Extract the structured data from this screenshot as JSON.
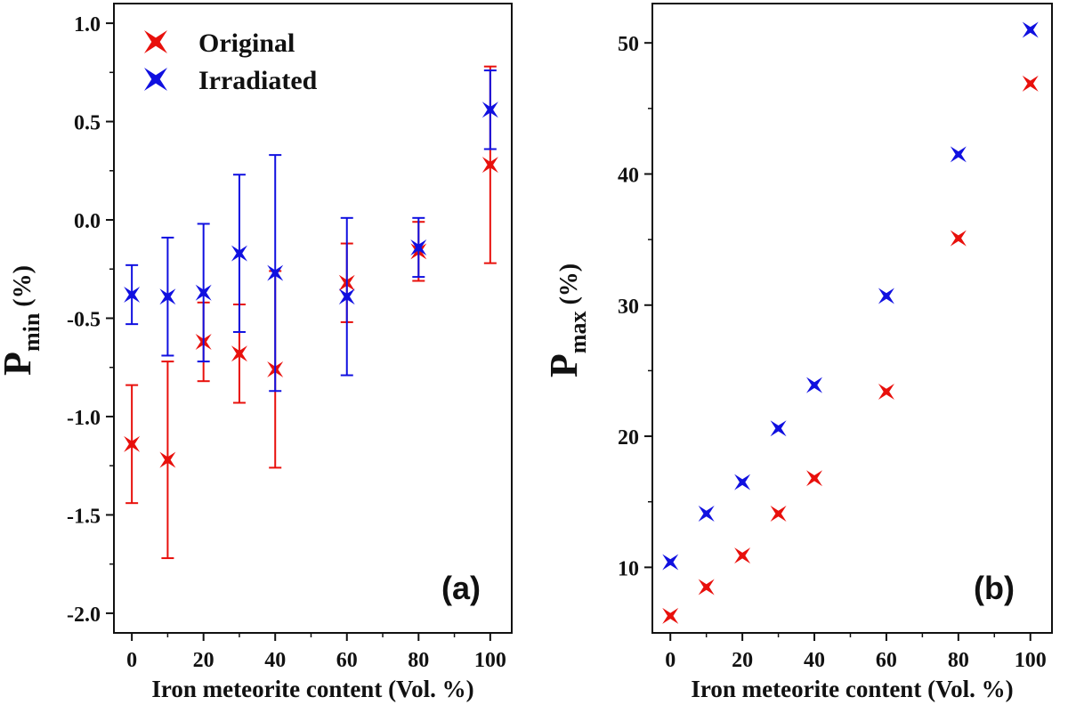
{
  "chart_data": [
    {
      "id": "a",
      "type": "scatter",
      "panel_label": "(a)",
      "xlabel": "Iron meteorite content (Vol. %)",
      "ylabel": {
        "main": "P",
        "sub": "min",
        "unit": " (%)"
      },
      "xlim": [
        -5,
        106
      ],
      "ylim": [
        -2.1,
        1.1
      ],
      "xticks": [
        0,
        20,
        40,
        60,
        80,
        100
      ],
      "xtick_labels": [
        "0",
        "20",
        "40",
        "60",
        "80",
        "100"
      ],
      "yticks": [
        -2.0,
        -1.5,
        -1.0,
        -0.5,
        0.0,
        0.5,
        1.0
      ],
      "ytick_labels": [
        "-2.0",
        "-1.5",
        "-1.0",
        "-0.5",
        "0.0",
        "0.5",
        "1.0"
      ],
      "legend": {
        "position": "top-left",
        "entries": [
          "Original",
          "Irradiated"
        ]
      },
      "series": [
        {
          "name": "Original",
          "color": "#e8100c",
          "x": [
            0,
            10,
            20,
            30,
            40,
            60,
            80,
            100
          ],
          "y": [
            -1.14,
            -1.22,
            -0.62,
            -0.68,
            -0.76,
            -0.32,
            -0.16,
            0.28
          ],
          "err": [
            0.3,
            0.5,
            0.2,
            0.25,
            0.5,
            0.2,
            0.15,
            0.5
          ]
        },
        {
          "name": "Irradiated",
          "color": "#1010e0",
          "x": [
            0,
            10,
            20,
            30,
            40,
            60,
            80,
            100
          ],
          "y": [
            -0.38,
            -0.39,
            -0.37,
            -0.17,
            -0.27,
            -0.39,
            -0.14,
            0.56
          ],
          "err": [
            0.15,
            0.3,
            0.35,
            0.4,
            0.6,
            0.4,
            0.15,
            0.2
          ]
        }
      ]
    },
    {
      "id": "b",
      "type": "scatter",
      "panel_label": "(b)",
      "xlabel": "Iron meteorite content (Vol. %)",
      "ylabel": {
        "main": "P",
        "sub": "max",
        "unit": " (%)"
      },
      "xlim": [
        -5,
        106
      ],
      "ylim": [
        5,
        53
      ],
      "xticks": [
        0,
        20,
        40,
        60,
        80,
        100
      ],
      "xtick_labels": [
        "0",
        "20",
        "40",
        "60",
        "80",
        "100"
      ],
      "yticks": [
        10,
        20,
        30,
        40,
        50
      ],
      "ytick_labels": [
        "10",
        "20",
        "30",
        "40",
        "50"
      ],
      "series": [
        {
          "name": "Original",
          "color": "#e8100c",
          "x": [
            0,
            10,
            20,
            30,
            40,
            60,
            80,
            100
          ],
          "y": [
            6.3,
            8.5,
            10.9,
            14.1,
            16.8,
            23.4,
            35.1,
            46.9
          ]
        },
        {
          "name": "Irradiated",
          "color": "#1010e0",
          "x": [
            0,
            10,
            20,
            30,
            40,
            60,
            80,
            100
          ],
          "y": [
            10.4,
            14.1,
            16.5,
            20.6,
            23.9,
            30.7,
            41.5,
            51.0
          ]
        }
      ]
    }
  ]
}
